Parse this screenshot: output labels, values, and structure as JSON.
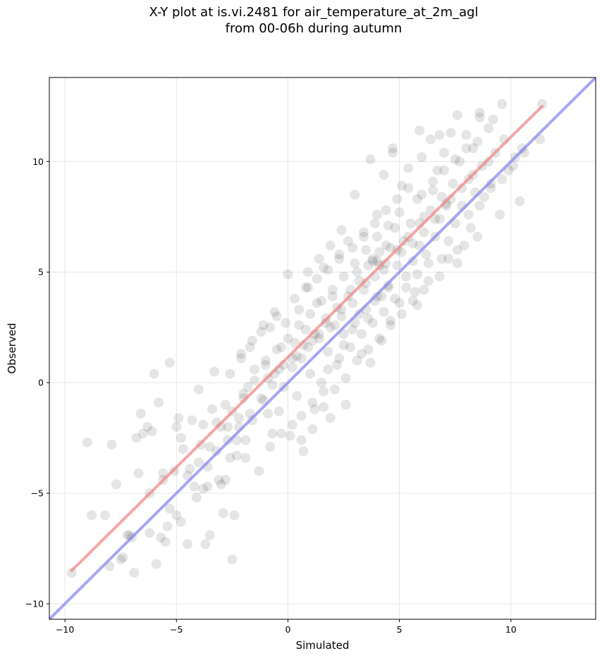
{
  "chart_data": {
    "type": "scatter",
    "title_line1": "X-Y plot at is.vi.2481 for air_temperature_at_2m_agl",
    "title_line2": "from 00-06h during autumn",
    "xlabel": "Simulated",
    "ylabel": "Observed",
    "xlim": [
      -10.7,
      13.8
    ],
    "ylim": [
      -10.7,
      13.8
    ],
    "xticks": [
      -10,
      -5,
      0,
      5,
      10
    ],
    "yticks": [
      -10,
      -5,
      0,
      5,
      10
    ],
    "xtick_labels": [
      "−10",
      "−5",
      "0",
      "5",
      "10"
    ],
    "ytick_labels": [
      "−10",
      "−5",
      "0",
      "5",
      "10"
    ],
    "grid": true,
    "point_color": "#000000",
    "point_alpha": 0.1,
    "points": [
      [
        -9.7,
        -8.6
      ],
      [
        -9.0,
        -2.7
      ],
      [
        -8.8,
        -6.0
      ],
      [
        -8.2,
        -6.0
      ],
      [
        -8.0,
        -8.3
      ],
      [
        -7.9,
        -2.8
      ],
      [
        -7.7,
        -4.6
      ],
      [
        -7.5,
        -8.0
      ],
      [
        -7.4,
        -7.9
      ],
      [
        -7.2,
        -6.9
      ],
      [
        -7.0,
        -7.0
      ],
      [
        -6.9,
        -8.6
      ],
      [
        -6.8,
        -2.5
      ],
      [
        -6.6,
        -1.4
      ],
      [
        -6.5,
        -2.3
      ],
      [
        -6.3,
        -2.0
      ],
      [
        -6.2,
        -5.0
      ],
      [
        -6.1,
        -2.2
      ],
      [
        -6.0,
        0.4
      ],
      [
        -5.9,
        -8.2
      ],
      [
        -5.8,
        -0.9
      ],
      [
        -5.7,
        -7.0
      ],
      [
        -5.6,
        -4.1
      ],
      [
        -5.5,
        -7.2
      ],
      [
        -5.4,
        -6.5
      ],
      [
        -5.3,
        0.9
      ],
      [
        -5.1,
        -4.0
      ],
      [
        -5.0,
        -6.0
      ],
      [
        -4.9,
        -1.6
      ],
      [
        -4.8,
        -2.5
      ],
      [
        -4.7,
        -3.0
      ],
      [
        -4.5,
        -7.3
      ],
      [
        -4.4,
        -3.9
      ],
      [
        -4.2,
        -4.7
      ],
      [
        -4.0,
        -0.3
      ],
      [
        -3.9,
        -2.8
      ],
      [
        -3.8,
        -1.9
      ],
      [
        -3.7,
        -7.3
      ],
      [
        -3.6,
        -4.7
      ],
      [
        -3.5,
        -6.9
      ],
      [
        -3.4,
        -1.2
      ],
      [
        -3.3,
        0.5
      ],
      [
        -3.2,
        -1.8
      ],
      [
        -3.1,
        -4.4
      ],
      [
        -3.0,
        -4.6
      ],
      [
        -2.9,
        -5.9
      ],
      [
        -2.8,
        -1.0
      ],
      [
        -2.7,
        -2.0
      ],
      [
        -2.6,
        -3.4
      ],
      [
        -2.5,
        -8.0
      ],
      [
        -2.4,
        -6.0
      ],
      [
        -2.3,
        -2.6
      ],
      [
        -2.2,
        -1.6
      ],
      [
        -2.1,
        1.3
      ],
      [
        -2.0,
        -0.5
      ],
      [
        -1.9,
        -2.6
      ],
      [
        -1.8,
        -0.2
      ],
      [
        -1.7,
        1.6
      ],
      [
        -1.6,
        -1.7
      ],
      [
        -1.5,
        0.6
      ],
      [
        -1.3,
        -4.0
      ],
      [
        -1.2,
        2.3
      ],
      [
        -1.1,
        -0.8
      ],
      [
        -1.0,
        1.0
      ],
      [
        -0.9,
        -1.4
      ],
      [
        -0.8,
        2.5
      ],
      [
        -0.7,
        -2.3
      ],
      [
        -0.6,
        0.4
      ],
      [
        -0.5,
        3.0
      ],
      [
        -0.4,
        -1.3
      ],
      [
        -0.3,
        1.6
      ],
      [
        -0.2,
        -0.2
      ],
      [
        -0.1,
        2.7
      ],
      [
        0.0,
        4.9
      ],
      [
        0.1,
        -2.4
      ],
      [
        0.2,
        0.7
      ],
      [
        0.3,
        1.8
      ],
      [
        0.4,
        -0.6
      ],
      [
        0.5,
        3.3
      ],
      [
        0.6,
        1.1
      ],
      [
        0.7,
        -3.1
      ],
      [
        0.8,
        2.4
      ],
      [
        0.9,
        4.3
      ],
      [
        1.0,
        0.4
      ],
      [
        1.1,
        1.9
      ],
      [
        1.2,
        -1.2
      ],
      [
        1.3,
        3.6
      ],
      [
        1.4,
        2.2
      ],
      [
        1.5,
        0.0
      ],
      [
        1.6,
        5.2
      ],
      [
        1.7,
        2.9
      ],
      [
        1.8,
        1.4
      ],
      [
        1.9,
        -1.6
      ],
      [
        2.0,
        3.9
      ],
      [
        2.1,
        2.6
      ],
      [
        2.2,
        0.8
      ],
      [
        2.3,
        5.8
      ],
      [
        2.4,
        3.3
      ],
      [
        2.5,
        1.7
      ],
      [
        2.6,
        -1.0
      ],
      [
        2.7,
        6.4
      ],
      [
        2.8,
        4.2
      ],
      [
        2.9,
        2.4
      ],
      [
        3.0,
        8.5
      ],
      [
        3.1,
        5.0
      ],
      [
        3.2,
        3.1
      ],
      [
        3.3,
        1.3
      ],
      [
        3.4,
        6.8
      ],
      [
        3.5,
        4.5
      ],
      [
        3.6,
        2.9
      ],
      [
        3.7,
        10.1
      ],
      [
        3.8,
        5.5
      ],
      [
        3.9,
        3.7
      ],
      [
        4.0,
        7.6
      ],
      [
        4.1,
        5.3
      ],
      [
        4.2,
        3.9
      ],
      [
        4.3,
        9.4
      ],
      [
        4.4,
        6.2
      ],
      [
        4.5,
        4.3
      ],
      [
        4.6,
        2.8
      ],
      [
        4.7,
        10.6
      ],
      [
        4.8,
        7.0
      ],
      [
        4.9,
        5.3
      ],
      [
        5.0,
        3.6
      ],
      [
        5.1,
        8.9
      ],
      [
        5.2,
        6.4
      ],
      [
        5.3,
        4.8
      ],
      [
        5.4,
        9.7
      ],
      [
        5.5,
        7.2
      ],
      [
        5.6,
        5.5
      ],
      [
        5.7,
        4.1
      ],
      [
        5.8,
        8.3
      ],
      [
        5.9,
        6.2
      ],
      [
        6.0,
        10.2
      ],
      [
        6.1,
        7.5
      ],
      [
        6.2,
        5.8
      ],
      [
        6.3,
        4.6
      ],
      [
        6.4,
        11.0
      ],
      [
        6.5,
        8.7
      ],
      [
        6.6,
        6.6
      ],
      [
        6.7,
        9.6
      ],
      [
        6.8,
        7.4
      ],
      [
        6.9,
        5.6
      ],
      [
        7.0,
        10.4
      ],
      [
        7.1,
        8.1
      ],
      [
        7.2,
        6.4
      ],
      [
        7.3,
        11.3
      ],
      [
        7.4,
        9.0
      ],
      [
        7.5,
        7.2
      ],
      [
        7.6,
        5.4
      ],
      [
        7.7,
        10.0
      ],
      [
        7.8,
        8.0
      ],
      [
        7.9,
        6.2
      ],
      [
        8.0,
        11.2
      ],
      [
        8.1,
        9.2
      ],
      [
        8.2,
        7.0
      ],
      [
        8.3,
        10.6
      ],
      [
        8.4,
        8.6
      ],
      [
        8.5,
        6.6
      ],
      [
        8.6,
        12.0
      ],
      [
        8.7,
        9.8
      ],
      [
        8.8,
        8.4
      ],
      [
        9.0,
        11.5
      ],
      [
        9.1,
        9.0
      ],
      [
        9.3,
        10.4
      ],
      [
        9.5,
        7.6
      ],
      [
        9.7,
        11.0
      ],
      [
        9.9,
        9.6
      ],
      [
        10.2,
        10.2
      ],
      [
        10.4,
        8.2
      ],
      [
        10.5,
        10.6
      ],
      [
        11.3,
        11.0
      ],
      [
        11.4,
        12.6
      ],
      [
        8.6,
        12.2
      ],
      [
        9.6,
        12.6
      ],
      [
        9.2,
        11.9
      ],
      [
        7.6,
        12.1
      ],
      [
        6.8,
        11.2
      ],
      [
        5.9,
        11.4
      ],
      [
        4.7,
        10.4
      ],
      [
        -0.2,
        0.8
      ],
      [
        0.4,
        1.2
      ],
      [
        0.9,
        1.6
      ],
      [
        1.4,
        2.0
      ],
      [
        1.9,
        2.5
      ],
      [
        2.4,
        3.0
      ],
      [
        2.9,
        3.6
      ],
      [
        3.4,
        4.2
      ],
      [
        3.9,
        4.8
      ],
      [
        4.4,
        5.4
      ],
      [
        4.9,
        6.0
      ],
      [
        5.4,
        6.6
      ],
      [
        5.9,
        7.2
      ],
      [
        6.4,
        7.8
      ],
      [
        6.9,
        8.4
      ],
      [
        3.8,
        5.6
      ],
      [
        4.1,
        5.9
      ],
      [
        4.3,
        5.1
      ],
      [
        3.6,
        5.3
      ],
      [
        4.0,
        5.5
      ],
      [
        4.6,
        6.1
      ],
      [
        3.2,
        4.6
      ],
      [
        2.7,
        3.9
      ],
      [
        2.2,
        3.4
      ],
      [
        1.7,
        2.7
      ],
      [
        1.2,
        2.2
      ],
      [
        0.7,
        1.7
      ],
      [
        0.2,
        1.1
      ],
      [
        -0.4,
        0.6
      ],
      [
        -0.9,
        0.2
      ],
      [
        5.1,
        5.9
      ],
      [
        5.6,
        6.3
      ],
      [
        6.1,
        6.8
      ],
      [
        6.6,
        7.4
      ],
      [
        7.1,
        8.0
      ],
      [
        2.5,
        2.2
      ],
      [
        3.0,
        2.7
      ],
      [
        3.5,
        3.3
      ],
      [
        4.0,
        3.9
      ],
      [
        4.5,
        4.4
      ],
      [
        1.0,
        3.1
      ],
      [
        1.5,
        3.7
      ],
      [
        2.0,
        4.2
      ],
      [
        2.5,
        4.8
      ],
      [
        3.0,
        5.4
      ],
      [
        3.5,
        6.0
      ],
      [
        4.0,
        6.6
      ],
      [
        4.5,
        7.1
      ],
      [
        5.0,
        7.7
      ],
      [
        0.5,
        2.6
      ],
      [
        0.0,
        2.0
      ],
      [
        -0.5,
        1.5
      ],
      [
        -1.0,
        0.8
      ],
      [
        -1.5,
        0.1
      ],
      [
        -2.0,
        -0.7
      ],
      [
        -2.5,
        -1.3
      ],
      [
        -3.0,
        -2.0
      ],
      [
        -3.5,
        -2.9
      ],
      [
        -4.0,
        -3.6
      ],
      [
        -4.5,
        -4.2
      ],
      [
        1.8,
        0.6
      ],
      [
        2.3,
        1.1
      ],
      [
        2.8,
        1.6
      ],
      [
        3.3,
        2.2
      ],
      [
        3.8,
        2.7
      ],
      [
        4.3,
        3.2
      ],
      [
        4.8,
        3.8
      ],
      [
        5.3,
        4.3
      ],
      [
        5.8,
        4.9
      ],
      [
        6.3,
        5.4
      ],
      [
        6.0,
        8.5
      ],
      [
        6.5,
        9.1
      ],
      [
        7.0,
        9.6
      ],
      [
        7.5,
        10.1
      ],
      [
        8.0,
        10.6
      ],
      [
        8.5,
        10.9
      ],
      [
        9.0,
        10.0
      ],
      [
        8.3,
        9.4
      ],
      [
        7.8,
        8.8
      ],
      [
        7.3,
        8.3
      ],
      [
        0.3,
        3.8
      ],
      [
        0.8,
        4.3
      ],
      [
        1.3,
        4.7
      ],
      [
        1.8,
        5.1
      ],
      [
        2.3,
        5.6
      ],
      [
        -0.6,
        3.2
      ],
      [
        -1.1,
        2.6
      ],
      [
        -1.6,
        1.9
      ],
      [
        -2.1,
        1.1
      ],
      [
        -2.6,
        0.4
      ],
      [
        3.1,
        1.0
      ],
      [
        3.6,
        1.5
      ],
      [
        4.1,
        2.0
      ],
      [
        4.6,
        2.6
      ],
      [
        5.1,
        3.1
      ],
      [
        5.6,
        3.7
      ],
      [
        6.1,
        4.2
      ],
      [
        1.6,
        -0.4
      ],
      [
        1.1,
        -0.9
      ],
      [
        0.6,
        -1.5
      ],
      [
        3.9,
        7.2
      ],
      [
        4.4,
        7.8
      ],
      [
        4.9,
        8.3
      ],
      [
        5.4,
        8.8
      ],
      [
        3.4,
        6.6
      ],
      [
        2.9,
        6.1
      ],
      [
        2.4,
        6.9
      ],
      [
        1.9,
        6.2
      ],
      [
        1.4,
        5.6
      ],
      [
        0.9,
        5.0
      ],
      [
        -3.2,
        -3.1
      ],
      [
        -2.7,
        -2.6
      ],
      [
        -2.2,
        -2.0
      ],
      [
        -1.7,
        -1.4
      ],
      [
        -1.2,
        -0.7
      ],
      [
        -0.7,
        -0.1
      ],
      [
        -3.8,
        -4.8
      ],
      [
        -4.3,
        -1.7
      ],
      [
        -5.0,
        -2.0
      ],
      [
        -5.6,
        -4.4
      ],
      [
        -6.2,
        -6.8
      ],
      [
        -6.7,
        -4.1
      ],
      [
        -7.1,
        -6.9
      ],
      [
        -5.3,
        -5.7
      ],
      [
        -4.8,
        -6.3
      ],
      [
        -4.1,
        -5.2
      ],
      [
        -3.6,
        -3.8
      ],
      [
        -2.8,
        -4.4
      ],
      [
        -2.3,
        -3.3
      ],
      [
        -1.9,
        -3.4
      ],
      [
        6.8,
        4.8
      ],
      [
        7.2,
        5.6
      ],
      [
        7.6,
        6.0
      ],
      [
        8.1,
        7.6
      ],
      [
        8.6,
        8.0
      ],
      [
        9.1,
        8.8
      ],
      [
        9.6,
        9.2
      ],
      [
        10.1,
        9.8
      ],
      [
        10.6,
        10.4
      ],
      [
        5.8,
        3.5
      ],
      [
        4.2,
        1.9
      ],
      [
        3.7,
        0.9
      ],
      [
        2.6,
        0.2
      ],
      [
        2.1,
        -0.3
      ],
      [
        1.6,
        -1.1
      ],
      [
        1.1,
        -2.1
      ],
      [
        0.6,
        -2.6
      ],
      [
        0.2,
        -1.9
      ],
      [
        -0.3,
        -2.3
      ],
      [
        -0.8,
        -2.9
      ]
    ],
    "fit_line": {
      "color": "#f08080",
      "from": [
        -9.7,
        -8.5
      ],
      "to": [
        11.4,
        12.5
      ]
    },
    "identity_line": {
      "color": "#8080f0",
      "from": [
        -10.7,
        -10.7
      ],
      "to": [
        13.8,
        13.8
      ]
    }
  }
}
